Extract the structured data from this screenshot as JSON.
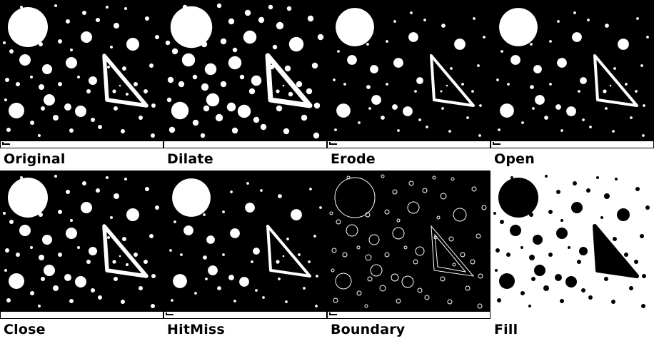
{
  "panels": [
    {
      "label": "Original",
      "mode": "normal"
    },
    {
      "label": "Dilate",
      "mode": "dilate"
    },
    {
      "label": "Erode",
      "mode": "erode"
    },
    {
      "label": "Open",
      "mode": "open"
    },
    {
      "label": "Close",
      "mode": "close"
    },
    {
      "label": "HitMiss",
      "mode": "hitmiss"
    },
    {
      "label": "Boundary",
      "mode": "boundary"
    },
    {
      "label": "Fill",
      "mode": "fill"
    }
  ],
  "colors": {
    "foreground": "#ffffff",
    "background": "#000000"
  }
}
